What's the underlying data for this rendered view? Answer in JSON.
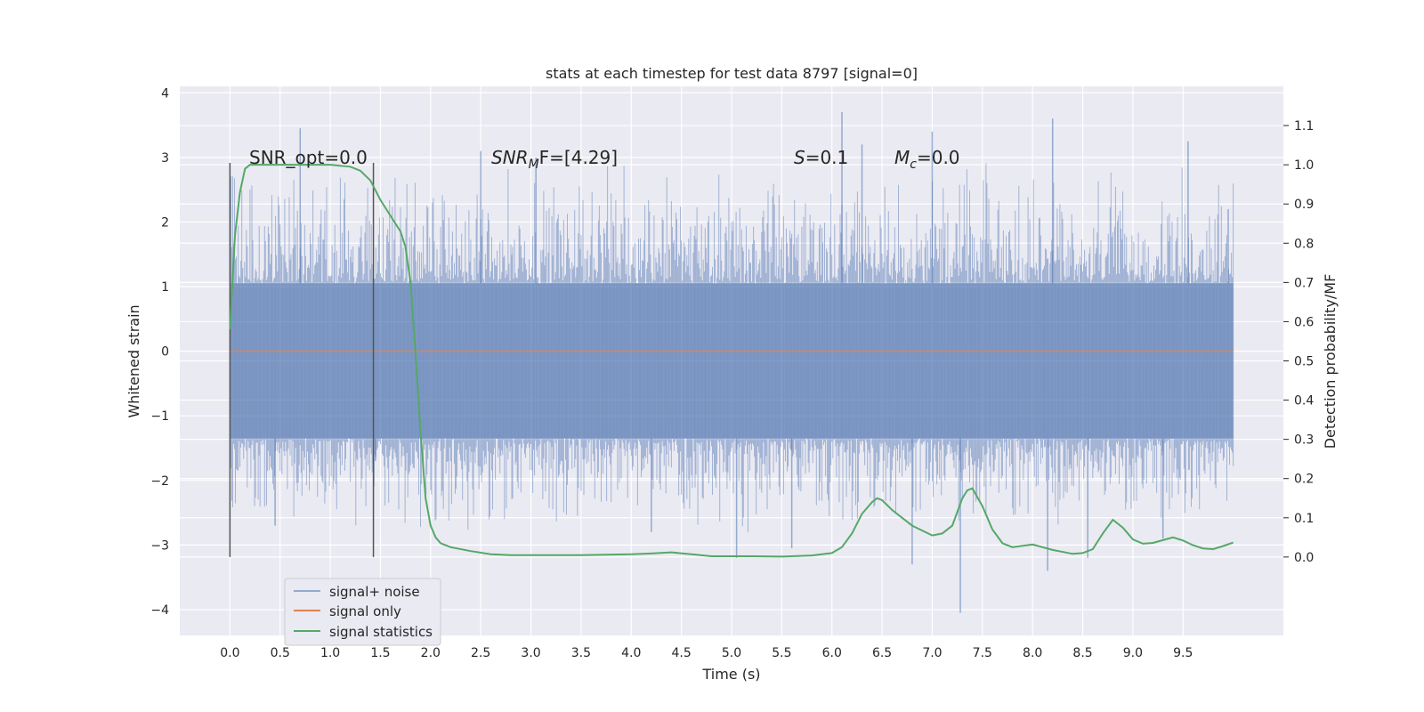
{
  "chart_data": {
    "type": "line",
    "title": "stats at each timestep for test data 8797 [signal=0]",
    "xlabel": "Time (s)",
    "ylabel_left": "Whitened strain",
    "ylabel_right": "Detection probability/MF",
    "xlim": [
      -0.5,
      10.5
    ],
    "ylim_left": [
      -4.4,
      4.1
    ],
    "ylim_right": [
      -0.2,
      1.2
    ],
    "x_ticks": [
      "0.0",
      "0.5",
      "1.0",
      "1.5",
      "2.0",
      "2.5",
      "3.0",
      "3.5",
      "4.0",
      "4.5",
      "5.0",
      "5.5",
      "6.0",
      "6.5",
      "7.0",
      "7.5",
      "8.0",
      "8.5",
      "9.0",
      "9.5"
    ],
    "y_ticks_left": [
      "−4",
      "−3",
      "−2",
      "−1",
      "0",
      "1",
      "2",
      "3",
      "4"
    ],
    "y_ticks_right": [
      "0.0",
      "0.1",
      "0.2",
      "0.3",
      "0.4",
      "0.5",
      "0.6",
      "0.7",
      "0.8",
      "0.9",
      "1.0",
      "1.1"
    ],
    "grid": true,
    "legend_position": "lower-left",
    "colors": {
      "signal_noise": "#4c72b0",
      "signal_only": "#dd8452",
      "statistics": "#55a868",
      "background": "#eaeaf2",
      "vlines": "#555555"
    },
    "annotations": {
      "snr_opt": "SNR_opt=0.0",
      "snr_mf_label": "SNR",
      "snr_mf_sub": "M",
      "snr_mf_tail": "F=[4.29]",
      "s_label": "S",
      "s_value": "=0.1",
      "mc_label": "M",
      "mc_sub": "c",
      "mc_value": "=0.0"
    },
    "vertical_markers": [
      0.0,
      1.43
    ],
    "noise_band": {
      "x_range": [
        0.0,
        10.0
      ],
      "dense_range": [
        -1.35,
        1.05
      ],
      "typical_spike_range": [
        -2.6,
        2.6
      ],
      "peaks": [
        {
          "x": 0.45,
          "y": -2.7
        },
        {
          "x": 0.7,
          "y": 3.45
        },
        {
          "x": 1.45,
          "y": -1.7
        },
        {
          "x": 2.5,
          "y": 3.1
        },
        {
          "x": 3.05,
          "y": 3.0
        },
        {
          "x": 4.2,
          "y": -2.8
        },
        {
          "x": 5.05,
          "y": -3.2
        },
        {
          "x": 5.6,
          "y": -3.05
        },
        {
          "x": 6.1,
          "y": 3.7
        },
        {
          "x": 6.3,
          "y": 3.2
        },
        {
          "x": 6.8,
          "y": -3.3
        },
        {
          "x": 7.0,
          "y": 3.4
        },
        {
          "x": 7.28,
          "y": -4.05
        },
        {
          "x": 8.15,
          "y": -3.4
        },
        {
          "x": 8.2,
          "y": 3.6
        },
        {
          "x": 8.55,
          "y": -3.2
        },
        {
          "x": 9.3,
          "y": -2.9
        },
        {
          "x": 9.55,
          "y": 3.25
        },
        {
          "x": 9.95,
          "y": 2.2
        }
      ]
    },
    "signal_only": {
      "x": [
        0.0,
        10.0
      ],
      "y": [
        0.0,
        0.0
      ]
    },
    "signal_statistics": {
      "x": [
        0.0,
        0.05,
        0.1,
        0.15,
        0.2,
        0.3,
        0.5,
        0.8,
        1.0,
        1.2,
        1.3,
        1.4,
        1.5,
        1.6,
        1.7,
        1.75,
        1.8,
        1.85,
        1.9,
        1.95,
        2.0,
        2.05,
        2.1,
        2.2,
        2.4,
        2.6,
        2.8,
        3.0,
        3.5,
        4.0,
        4.2,
        4.4,
        4.6,
        4.8,
        5.0,
        5.2,
        5.5,
        5.8,
        6.0,
        6.1,
        6.2,
        6.3,
        6.4,
        6.45,
        6.5,
        6.6,
        6.8,
        7.0,
        7.1,
        7.2,
        7.3,
        7.35,
        7.4,
        7.5,
        7.6,
        7.7,
        7.8,
        8.0,
        8.2,
        8.4,
        8.5,
        8.6,
        8.7,
        8.8,
        8.9,
        9.0,
        9.1,
        9.2,
        9.3,
        9.4,
        9.5,
        9.6,
        9.7,
        9.8,
        9.9,
        10.0
      ],
      "y": [
        0.58,
        0.82,
        0.93,
        0.99,
        1.0,
        1.0,
        1.0,
        1.0,
        1.0,
        0.995,
        0.985,
        0.96,
        0.91,
        0.87,
        0.83,
        0.79,
        0.7,
        0.52,
        0.32,
        0.15,
        0.08,
        0.05,
        0.035,
        0.025,
        0.015,
        0.007,
        0.005,
        0.005,
        0.005,
        0.007,
        0.009,
        0.012,
        0.007,
        0.002,
        0.002,
        0.002,
        0.001,
        0.004,
        0.01,
        0.025,
        0.06,
        0.11,
        0.14,
        0.15,
        0.145,
        0.12,
        0.08,
        0.055,
        0.06,
        0.08,
        0.15,
        0.17,
        0.175,
        0.13,
        0.07,
        0.035,
        0.025,
        0.032,
        0.018,
        0.008,
        0.01,
        0.02,
        0.06,
        0.095,
        0.075,
        0.045,
        0.034,
        0.036,
        0.043,
        0.05,
        0.042,
        0.03,
        0.022,
        0.02,
        0.028,
        0.037
      ]
    },
    "legend": [
      {
        "label": "signal+ noise",
        "series": "signal_noise"
      },
      {
        "label": "signal only",
        "series": "signal_only"
      },
      {
        "label": "signal statistics",
        "series": "statistics"
      }
    ]
  }
}
